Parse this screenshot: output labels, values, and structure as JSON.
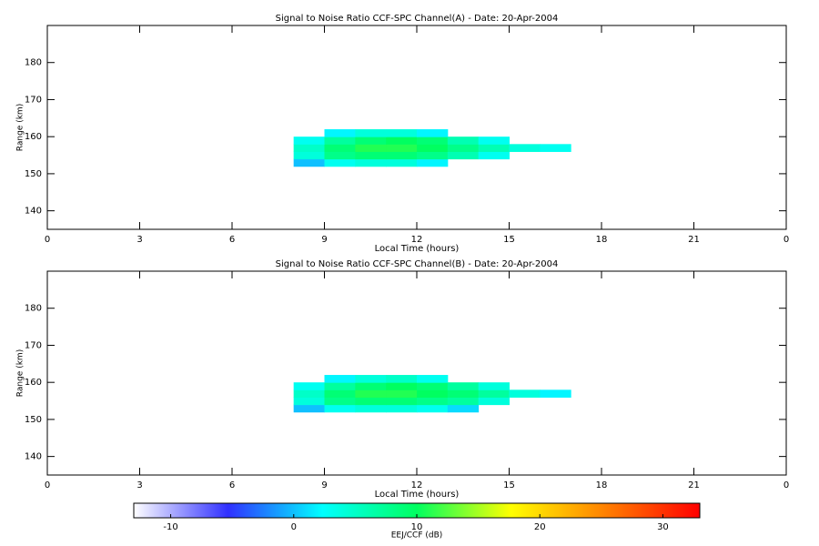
{
  "chart_data": [
    {
      "type": "heatmap",
      "title": "Signal to Noise Ratio CCF-SPC Channel(A) - Date: 20-Apr-2004",
      "xlabel": "Local Time (hours)",
      "ylabel": "Range (km)",
      "xlim": [
        0,
        24
      ],
      "xticks": [
        0,
        3,
        6,
        9,
        12,
        15,
        18,
        21,
        {
          "value": 24,
          "label": "0"
        }
      ],
      "ylim": [
        135,
        190
      ],
      "yticks": [
        140,
        150,
        160,
        170,
        180
      ],
      "x_bins": [
        8,
        9,
        10,
        11,
        12,
        13,
        14,
        15,
        16,
        17
      ],
      "y_bins": [
        152,
        154,
        156,
        158,
        160,
        162
      ],
      "z": [
        [
          0,
          3,
          4,
          4,
          2,
          null,
          null,
          null,
          null
        ],
        [
          4,
          8,
          9,
          9,
          8,
          6,
          3,
          null,
          null
        ],
        [
          5,
          9,
          11,
          11,
          10,
          8,
          6,
          4,
          3
        ],
        [
          3,
          7,
          9,
          10,
          9,
          6,
          3,
          null,
          null
        ],
        [
          null,
          2,
          4,
          4,
          2,
          null,
          null,
          null,
          null
        ]
      ]
    },
    {
      "type": "heatmap",
      "title": "Signal to Noise Ratio CCF-SPC Channel(B) - Date: 20-Apr-2004",
      "xlabel": "Local Time (hours)",
      "ylabel": "Range (km)",
      "xlim": [
        0,
        24
      ],
      "xticks": [
        0,
        3,
        6,
        9,
        12,
        15,
        18,
        21,
        {
          "value": 24,
          "label": "0"
        }
      ],
      "ylim": [
        135,
        190
      ],
      "yticks": [
        140,
        150,
        160,
        170,
        180
      ],
      "x_bins": [
        8,
        9,
        10,
        11,
        12,
        13,
        14,
        15,
        16,
        17
      ],
      "y_bins": [
        152,
        154,
        156,
        158,
        160,
        162
      ],
      "z": [
        [
          0,
          3,
          4,
          4,
          3,
          1,
          null,
          null,
          null
        ],
        [
          4,
          8,
          9,
          9,
          8,
          7,
          4,
          null,
          null
        ],
        [
          5,
          9,
          11,
          11,
          10,
          9,
          7,
          4,
          2
        ],
        [
          3,
          7,
          9,
          10,
          9,
          7,
          4,
          null,
          null
        ],
        [
          null,
          2,
          4,
          5,
          3,
          null,
          null,
          null,
          null
        ]
      ]
    }
  ],
  "colorbar": {
    "label": "EEJ/CCF (dB)",
    "lim": [
      -13,
      33
    ],
    "ticks": [
      -10,
      0,
      10,
      20,
      30
    ],
    "colors": [
      "#ffffff",
      "#3030ff",
      "#00ffff",
      "#00ff60",
      "#ffff00",
      "#ff8000",
      "#ff0000"
    ]
  }
}
